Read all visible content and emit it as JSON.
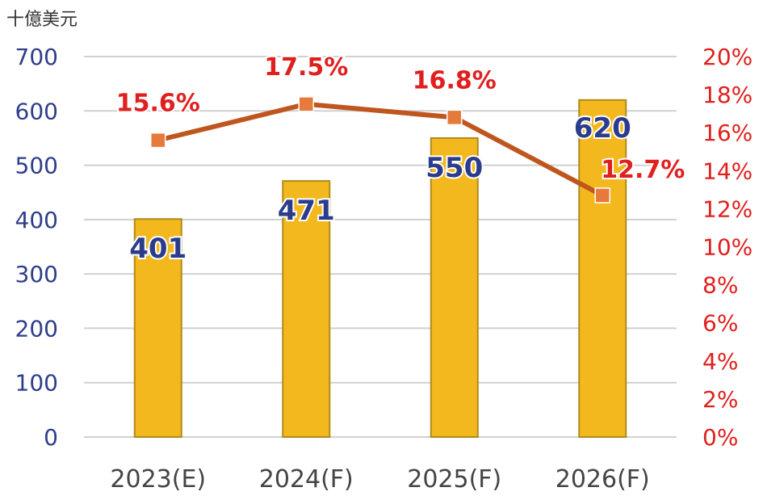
{
  "colors": {
    "bar_fill": "#F2B81E",
    "bar_stroke": "#B08A1A",
    "line": "#C0561F",
    "marker": "#E57A3A",
    "left_axis": "#2E3E8A",
    "right_axis": "#E0201E",
    "bar_label": "#2B3C8C",
    "pct_label": "#E0201E",
    "grid": "#D0D0D0",
    "x_tick": "#444444"
  },
  "chart_data": {
    "type": "bar",
    "unit_label": "十億美元",
    "categories": [
      "2023(E)",
      "2024(F)",
      "2025(F)",
      "2026(F)"
    ],
    "series": [
      {
        "type": "bar",
        "axis": "left",
        "values": [
          401,
          471,
          550,
          620
        ],
        "labels": [
          "401",
          "471",
          "550",
          "620"
        ]
      },
      {
        "type": "line",
        "axis": "right",
        "values": [
          15.6,
          17.5,
          16.8,
          12.7
        ],
        "labels": [
          "15.6%",
          "17.5%",
          "16.8%",
          "12.7%"
        ]
      }
    ],
    "y_left": {
      "min": 0,
      "max": 700,
      "ticks": [
        "0",
        "100",
        "200",
        "300",
        "400",
        "500",
        "600",
        "700"
      ]
    },
    "y_right": {
      "min": 0,
      "max": 20,
      "ticks": [
        "0%",
        "2%",
        "4%",
        "6%",
        "8%",
        "10%",
        "12%",
        "14%",
        "16%",
        "18%",
        "20%"
      ]
    },
    "grid": true,
    "legend": "none"
  }
}
